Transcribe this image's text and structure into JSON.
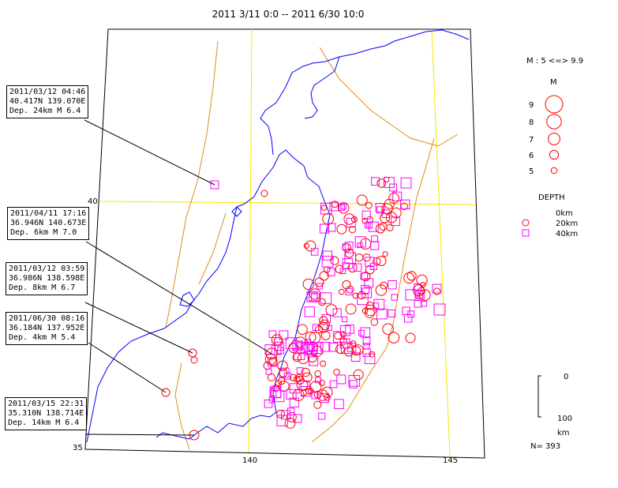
{
  "title": "2011 3/11 0:0 -- 2011 6/30 10:0",
  "map": {
    "lat_labels": [
      {
        "text": "40"
      },
      {
        "text": "35"
      }
    ],
    "lon_labels": [
      {
        "text": "140"
      },
      {
        "text": "145"
      }
    ]
  },
  "legend": {
    "mag_range": "M : 5 <=> 9.9",
    "mag_header": "M",
    "mag_items": [
      {
        "label": "9",
        "mag": 9
      },
      {
        "label": "8",
        "mag": 8
      },
      {
        "label": "7",
        "mag": 7
      },
      {
        "label": "6",
        "mag": 6
      },
      {
        "label": "5",
        "mag": 5
      }
    ],
    "depth_header": "DEPTH",
    "depth_items": [
      {
        "label": "0km",
        "symbol": "circle",
        "color": "#ff0000"
      },
      {
        "label": "20km",
        "symbol": "circle",
        "color": "#ff0000"
      },
      {
        "label": "40km",
        "symbol": "square",
        "color": "#ff00ff"
      }
    ],
    "depth_scale": {
      "top": "0",
      "bottom": "100",
      "unit": "km"
    },
    "count": "N= 393"
  },
  "annotations": [
    {
      "line1": "2011/03/12 04:46",
      "line2": "40.417N  139.070E",
      "line3": "Dep. 24km   M 6.4"
    },
    {
      "line1": "2011/04/11 17:16",
      "line2": "36.946N  140.673E",
      "line3": "Dep. 6km   M 7.0"
    },
    {
      "line1": "2011/03/12 03:59",
      "line2": "36.986N  138.598E",
      "line3": "Dep. 8km   M 6.7"
    },
    {
      "line1": "2011/06/30 08:16",
      "line2": "36.184N  137.952E",
      "line3": "Dep. 4km   M 5.4"
    },
    {
      "line1": "2011/03/15 22:31",
      "line2": "35.310N  138.714E",
      "line3": "Dep. 14km   M 6.4"
    }
  ],
  "colors": {
    "frame": "#000000",
    "gridline": "#f5e600",
    "coast": "#0000ff",
    "plate_boundary": "#e08a1a",
    "shallow": "#ff0000",
    "deep": "#ff00ff"
  }
}
